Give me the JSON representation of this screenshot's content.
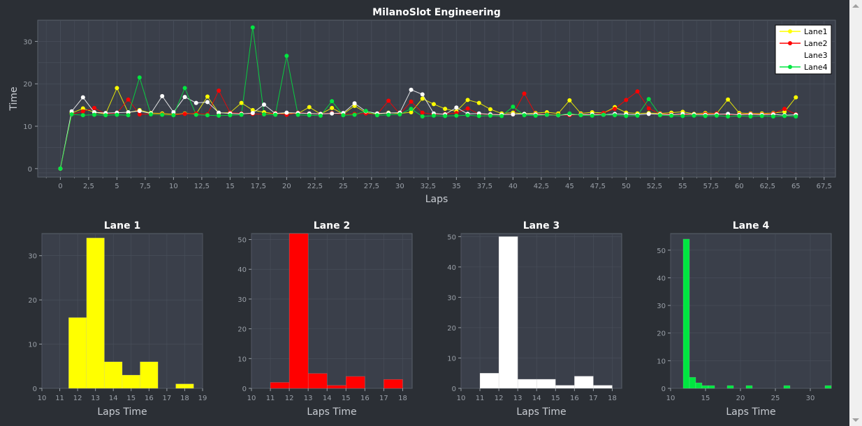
{
  "window": {
    "title": "MilanoSlot Engineering"
  },
  "colors": {
    "lane1": "#ffff00",
    "lane2": "#ff0000",
    "lane3": "#ffffff",
    "lane4": "#00e640",
    "plot_bg": "#3a3f4a",
    "grid": "#4a505c",
    "axis_text": "#9aa0a8",
    "title_text": "#ffffff"
  },
  "chart_data": [
    {
      "type": "line",
      "title": "MilanoSlot Engineering",
      "xlabel": "Laps",
      "ylabel": "Time",
      "xlim": [
        -2,
        68.5
      ],
      "ylim": [
        -2,
        35
      ],
      "xticks": [
        "0",
        "2,5",
        "5",
        "7,5",
        "10",
        "12,5",
        "15",
        "17,5",
        "20",
        "22,5",
        "25",
        "27,5",
        "30",
        "32,5",
        "35",
        "37,5",
        "40",
        "42,5",
        "45",
        "47,5",
        "50",
        "52,5",
        "55",
        "57,5",
        "60",
        "62,5",
        "65",
        "67,5"
      ],
      "yticks": [
        "0",
        "10",
        "20",
        "30"
      ],
      "legend": {
        "position": "top-right",
        "entries": [
          "Lane1",
          "Lane2",
          "Lane3",
          "Lane4"
        ]
      },
      "series": [
        {
          "name": "Lane1",
          "color": "#ffff00",
          "values": [
            0,
            13.1,
            14.2,
            13.3,
            12.9,
            19.0,
            13.2,
            13.8,
            13.1,
            13.0,
            12.8,
            13.0,
            12.9,
            17.0,
            13.1,
            13.2,
            15.5,
            13.8,
            13.3,
            12.9,
            13.1,
            13.0,
            14.5,
            12.9,
            14.3,
            12.9,
            14.8,
            13.2,
            12.9,
            13.2,
            13.0,
            13.3,
            16.5,
            15.2,
            14.1,
            13.5,
            16.2,
            15.5,
            14.0,
            13.0,
            13.2,
            12.9,
            13.1,
            13.3,
            13.0,
            16.1,
            13.0,
            13.3,
            13.1,
            14.5,
            13.2,
            13.0,
            13.1,
            13.0,
            13.2,
            13.4,
            12.9,
            13.1,
            13.0,
            16.3,
            13.1,
            13.0,
            13.0,
            13.1,
            13.4,
            16.8
          ]
        },
        {
          "name": "Lane2",
          "color": "#ff0000",
          "values": [
            0,
            12.8,
            13.5,
            14.3,
            12.9,
            13.1,
            16.3,
            12.8,
            12.9,
            12.8,
            12.7,
            12.9,
            13.0,
            12.8,
            18.4,
            13.2,
            13.0,
            12.9,
            12.8,
            13.1,
            12.7,
            13.2,
            13.0,
            12.9,
            13.1,
            12.8,
            12.9,
            13.0,
            12.8,
            16.0,
            12.9,
            15.8,
            13.2,
            12.8,
            12.9,
            13.1,
            14.2,
            12.9,
            12.8,
            12.7,
            12.8,
            17.7,
            12.9,
            12.8,
            12.7,
            12.6,
            12.8,
            12.7,
            13.1,
            14.1,
            16.2,
            18.2,
            14.2,
            12.9,
            12.8,
            12.7,
            12.8,
            12.9,
            13.0,
            12.7,
            12.8,
            12.9,
            12.8,
            13.0,
            14.1,
            12.8
          ]
        },
        {
          "name": "Lane3",
          "color": "#ffffff",
          "values": [
            0,
            13.5,
            16.8,
            13.3,
            13.1,
            13.2,
            13.3,
            13.6,
            13.0,
            17.1,
            13.3,
            16.9,
            15.5,
            15.7,
            13.2,
            13.0,
            12.9,
            13.1,
            15.1,
            13.0,
            13.2,
            13.1,
            13.0,
            12.9,
            13.0,
            13.1,
            15.4,
            13.5,
            13.0,
            13.1,
            13.2,
            18.6,
            17.5,
            13.0,
            12.8,
            14.4,
            12.9,
            13.0,
            12.8,
            12.7,
            12.8,
            12.9,
            12.8,
            12.7,
            12.6,
            12.8,
            12.7,
            12.8,
            12.7,
            12.9,
            12.8,
            12.7,
            12.9,
            12.8,
            12.7,
            12.9,
            12.8,
            12.7,
            12.8,
            12.9,
            12.7,
            12.8,
            12.7,
            12.8,
            12.6,
            12.7
          ]
        },
        {
          "name": "Lane4",
          "color": "#00e640",
          "values": [
            0,
            12.8,
            12.6,
            12.7,
            12.6,
            12.7,
            12.6,
            21.5,
            12.8,
            12.7,
            12.6,
            19.0,
            12.7,
            12.6,
            12.5,
            12.6,
            12.7,
            33.3,
            12.8,
            12.7,
            26.6,
            12.7,
            12.6,
            12.5,
            15.9,
            12.6,
            12.7,
            13.6,
            12.6,
            12.7,
            12.8,
            14.1,
            12.3,
            12.5,
            12.4,
            12.5,
            12.6,
            12.4,
            12.5,
            12.4,
            14.6,
            12.6,
            12.5,
            12.7,
            12.6,
            13.0,
            12.6,
            12.5,
            12.7,
            12.6,
            12.4,
            12.5,
            16.4,
            12.6,
            12.5,
            12.4,
            12.5,
            12.4,
            12.5,
            12.3,
            12.4,
            12.3,
            12.4,
            12.3,
            12.4,
            12.3
          ]
        }
      ]
    },
    {
      "type": "bar",
      "title": "Lane 1",
      "xlabel": "Laps Time",
      "ylabel": "",
      "color": "#ffff00",
      "xlim": [
        10,
        19
      ],
      "ylim": [
        0,
        35
      ],
      "xticks": [
        "10",
        "11",
        "12",
        "13",
        "14",
        "15",
        "16",
        "17",
        "18",
        "19"
      ],
      "yticks": [
        "0",
        "10",
        "20",
        "30"
      ],
      "bins": [
        {
          "x0": 11.5,
          "x1": 12.5,
          "value": 16
        },
        {
          "x0": 12.5,
          "x1": 13.5,
          "value": 34
        },
        {
          "x0": 13.5,
          "x1": 14.5,
          "value": 6
        },
        {
          "x0": 14.5,
          "x1": 15.5,
          "value": 3
        },
        {
          "x0": 15.5,
          "x1": 16.5,
          "value": 6
        },
        {
          "x0": 17.5,
          "x1": 18.5,
          "value": 1
        }
      ]
    },
    {
      "type": "bar",
      "title": "Lane 2",
      "xlabel": "Laps Time",
      "ylabel": "",
      "color": "#ff0000",
      "xlim": [
        10,
        18.5
      ],
      "ylim": [
        0,
        52
      ],
      "xticks": [
        "10",
        "11",
        "12",
        "13",
        "14",
        "15",
        "16",
        "17",
        "18"
      ],
      "yticks": [
        "0",
        "10",
        "20",
        "30",
        "40",
        "50"
      ],
      "bins": [
        {
          "x0": 11.0,
          "x1": 12.0,
          "value": 2
        },
        {
          "x0": 12.0,
          "x1": 13.0,
          "value": 52
        },
        {
          "x0": 13.0,
          "x1": 14.0,
          "value": 5
        },
        {
          "x0": 14.0,
          "x1": 15.0,
          "value": 1
        },
        {
          "x0": 15.0,
          "x1": 16.0,
          "value": 4
        },
        {
          "x0": 17.0,
          "x1": 18.0,
          "value": 3
        }
      ]
    },
    {
      "type": "bar",
      "title": "Lane 3",
      "xlabel": "Laps Time",
      "ylabel": "",
      "color": "#ffffff",
      "xlim": [
        10,
        18.5
      ],
      "ylim": [
        0,
        51
      ],
      "xticks": [
        "10",
        "11",
        "12",
        "13",
        "14",
        "15",
        "16",
        "17",
        "18"
      ],
      "yticks": [
        "0",
        "10",
        "20",
        "30",
        "40",
        "50"
      ],
      "bins": [
        {
          "x0": 11.0,
          "x1": 12.0,
          "value": 5
        },
        {
          "x0": 12.0,
          "x1": 13.0,
          "value": 50
        },
        {
          "x0": 13.0,
          "x1": 14.0,
          "value": 3
        },
        {
          "x0": 14.0,
          "x1": 15.0,
          "value": 3
        },
        {
          "x0": 15.0,
          "x1": 16.0,
          "value": 1
        },
        {
          "x0": 16.0,
          "x1": 17.0,
          "value": 4
        },
        {
          "x0": 17.0,
          "x1": 18.0,
          "value": 1
        }
      ]
    },
    {
      "type": "bar",
      "title": "Lane 4",
      "xlabel": "Laps Time",
      "ylabel": "",
      "color": "#00e640",
      "xlim": [
        10,
        33
      ],
      "ylim": [
        0,
        56
      ],
      "xticks": [
        "10",
        "15",
        "20",
        "25",
        "30"
      ],
      "tick_values": [
        10,
        15,
        20,
        25,
        30
      ],
      "yticks": [
        "0",
        "10",
        "20",
        "30",
        "40",
        "50"
      ],
      "bins": [
        {
          "x0": 11.8,
          "x1": 12.7,
          "value": 54
        },
        {
          "x0": 12.7,
          "x1": 13.6,
          "value": 4
        },
        {
          "x0": 13.6,
          "x1": 14.5,
          "value": 2
        },
        {
          "x0": 14.5,
          "x1": 15.4,
          "value": 1
        },
        {
          "x0": 15.4,
          "x1": 16.3,
          "value": 1
        },
        {
          "x0": 18.1,
          "x1": 19.0,
          "value": 1
        },
        {
          "x0": 20.8,
          "x1": 21.7,
          "value": 1
        },
        {
          "x0": 26.2,
          "x1": 27.1,
          "value": 1
        },
        {
          "x0": 32.1,
          "x1": 33.0,
          "value": 1
        }
      ]
    }
  ]
}
